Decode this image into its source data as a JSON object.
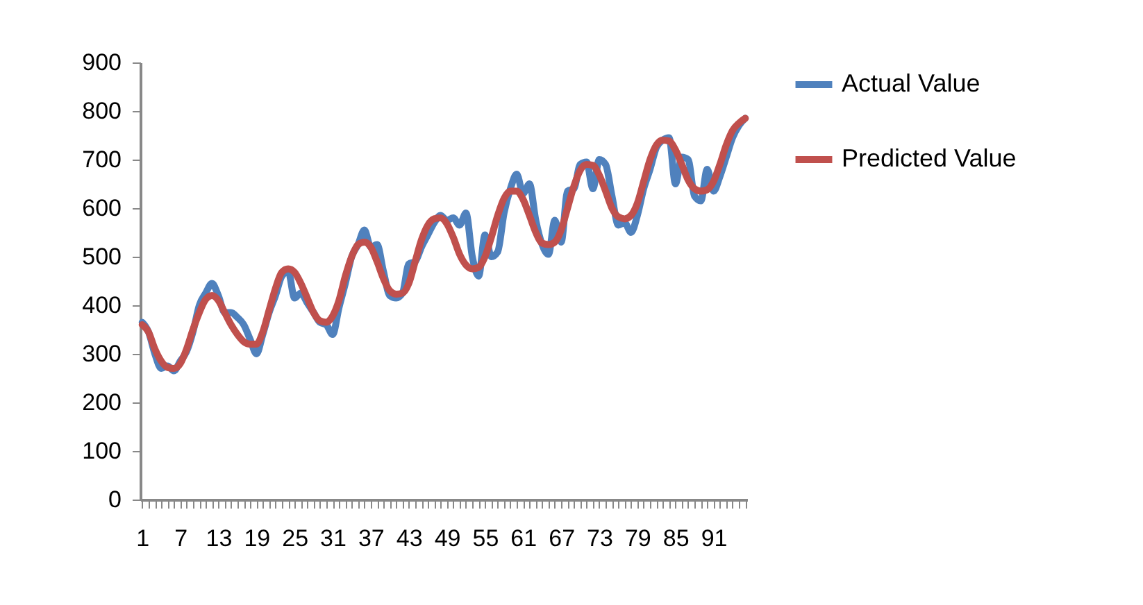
{
  "chart_data": {
    "type": "line",
    "categories": [
      "1",
      null,
      null,
      null,
      null,
      null,
      "7",
      null,
      null,
      null,
      null,
      null,
      "13",
      null,
      null,
      null,
      null,
      null,
      "19",
      null,
      null,
      null,
      null,
      null,
      "25",
      null,
      null,
      null,
      null,
      null,
      "31",
      null,
      null,
      null,
      null,
      null,
      "37",
      null,
      null,
      null,
      null,
      null,
      "43",
      null,
      null,
      null,
      null,
      null,
      "49",
      null,
      null,
      null,
      null,
      null,
      "55",
      null,
      null,
      null,
      null,
      null,
      "61",
      null,
      null,
      null,
      null,
      null,
      "67",
      null,
      null,
      null,
      null,
      null,
      "73",
      null,
      null,
      null,
      null,
      null,
      "79",
      null,
      null,
      null,
      null,
      null,
      "85",
      null,
      null,
      null,
      null,
      null,
      "91",
      null,
      null,
      null,
      null,
      null
    ],
    "series": [
      {
        "name": "Actual Value",
        "color": "#4f81bd",
        "values": [
          365,
          345,
          300,
          270,
          275,
          265,
          285,
          305,
          345,
          400,
          425,
          445,
          420,
          385,
          385,
          375,
          360,
          330,
          300,
          340,
          385,
          420,
          460,
          470,
          415,
          425,
          405,
          385,
          365,
          360,
          340,
          395,
          445,
          500,
          525,
          555,
          520,
          525,
          470,
          420,
          415,
          425,
          485,
          490,
          520,
          545,
          570,
          585,
          575,
          580,
          565,
          590,
          500,
          460,
          545,
          500,
          510,
          590,
          640,
          670,
          630,
          650,
          575,
          525,
          505,
          575,
          530,
          635,
          640,
          690,
          695,
          640,
          700,
          690,
          625,
          565,
          570,
          550,
          585,
          640,
          680,
          725,
          740,
          745,
          650,
          705,
          700,
          625,
          615,
          680,
          635,
          665,
          705,
          745,
          770,
          785
        ]
      },
      {
        "name": "Predicted Value",
        "color": "#c0504d",
        "values": [
          360,
          345,
          310,
          285,
          272,
          270,
          280,
          310,
          350,
          385,
          412,
          420,
          410,
          385,
          360,
          340,
          325,
          320,
          320,
          345,
          390,
          435,
          468,
          475,
          468,
          445,
          415,
          385,
          368,
          365,
          378,
          410,
          460,
          500,
          525,
          530,
          520,
          490,
          455,
          430,
          423,
          425,
          445,
          490,
          535,
          565,
          578,
          580,
          568,
          540,
          505,
          483,
          475,
          478,
          500,
          540,
          585,
          620,
          635,
          635,
          618,
          585,
          550,
          528,
          525,
          530,
          555,
          600,
          645,
          678,
          690,
          688,
          668,
          635,
          600,
          582,
          578,
          585,
          610,
          655,
          700,
          730,
          740,
          738,
          720,
          690,
          658,
          640,
          635,
          638,
          655,
          690,
          730,
          760,
          775,
          785
        ]
      }
    ],
    "ylim": [
      0,
      900
    ],
    "yticks": [
      0,
      100,
      200,
      300,
      400,
      500,
      600,
      700,
      800,
      900
    ],
    "grid": false,
    "legend": "right"
  }
}
